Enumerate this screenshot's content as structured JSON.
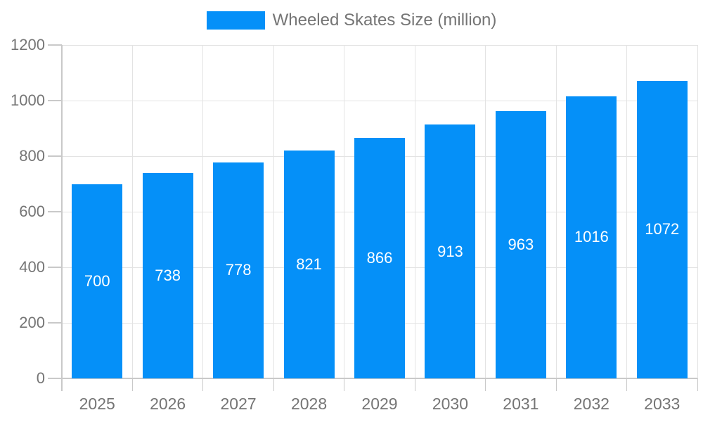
{
  "chart_data": {
    "type": "bar",
    "title": "",
    "legend": "Wheeled Skates Size (million)",
    "legend_position": "top",
    "categories": [
      "2025",
      "2026",
      "2027",
      "2028",
      "2029",
      "2030",
      "2031",
      "2032",
      "2033"
    ],
    "series": [
      {
        "name": "Wheeled Skates Size (million)",
        "values": [
          700,
          738,
          778,
          821,
          866,
          913,
          963,
          1016,
          1072
        ]
      }
    ],
    "xlabel": "",
    "ylabel": "",
    "ylim": [
      0,
      1200
    ],
    "y_tick_step": 200,
    "y_tick_labels": [
      "0",
      "200",
      "400",
      "600",
      "800",
      "1000",
      "1200"
    ],
    "grid": true,
    "bar_labels_visible": true,
    "colors": {
      "bar": "#0590f8",
      "bar_value_text": "#ffffff",
      "axis_text": "#757575",
      "legend_text": "#757575",
      "axis_line": "#c9c9c9",
      "grid_line": "#e3e3e3"
    }
  }
}
